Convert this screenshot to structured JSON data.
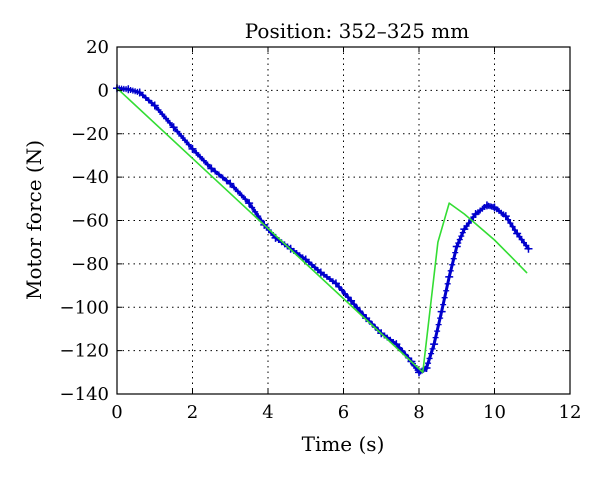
{
  "chart_data": {
    "type": "line",
    "title": "Position: 352–325 mm",
    "xlabel": "Time (s)",
    "ylabel": "Motor force (N)",
    "xlim": [
      0,
      12
    ],
    "ylim": [
      -140,
      20
    ],
    "xticks": [
      0,
      2,
      4,
      6,
      8,
      10,
      12
    ],
    "yticks": [
      20,
      0,
      -20,
      -40,
      -60,
      -80,
      -100,
      -120,
      -140
    ],
    "grid": true,
    "legend": "none",
    "series": [
      {
        "color": "#0000cc",
        "marker": "plus",
        "x": [
          0,
          0.3,
          0.6,
          1.0,
          1.5,
          2.0,
          2.5,
          3.0,
          3.5,
          3.9,
          4.2,
          4.6,
          5.0,
          5.4,
          5.8,
          6.2,
          6.6,
          7.0,
          7.4,
          7.8,
          8.0,
          8.2,
          8.4,
          8.6,
          8.8,
          9.0,
          9.2,
          9.5,
          9.8,
          10.0,
          10.3,
          10.6,
          10.9
        ],
        "y": [
          1,
          0.5,
          -1,
          -7,
          -17,
          -27,
          -36,
          -43,
          -52,
          -62,
          -68,
          -73,
          -78,
          -84,
          -89,
          -97,
          -105,
          -112,
          -117,
          -125,
          -130,
          -128,
          -117,
          -102,
          -86,
          -72,
          -64,
          -57,
          -53,
          -54,
          -58,
          -66,
          -73
        ]
      },
      {
        "color": "#33dd33",
        "marker": "none",
        "x": [
          0,
          8.1,
          8.5,
          8.8,
          9.2,
          9.6,
          10.0,
          10.4,
          10.85
        ],
        "y": [
          1,
          -130,
          -70,
          -52,
          -57,
          -63,
          -69,
          -76,
          -84
        ]
      }
    ]
  }
}
